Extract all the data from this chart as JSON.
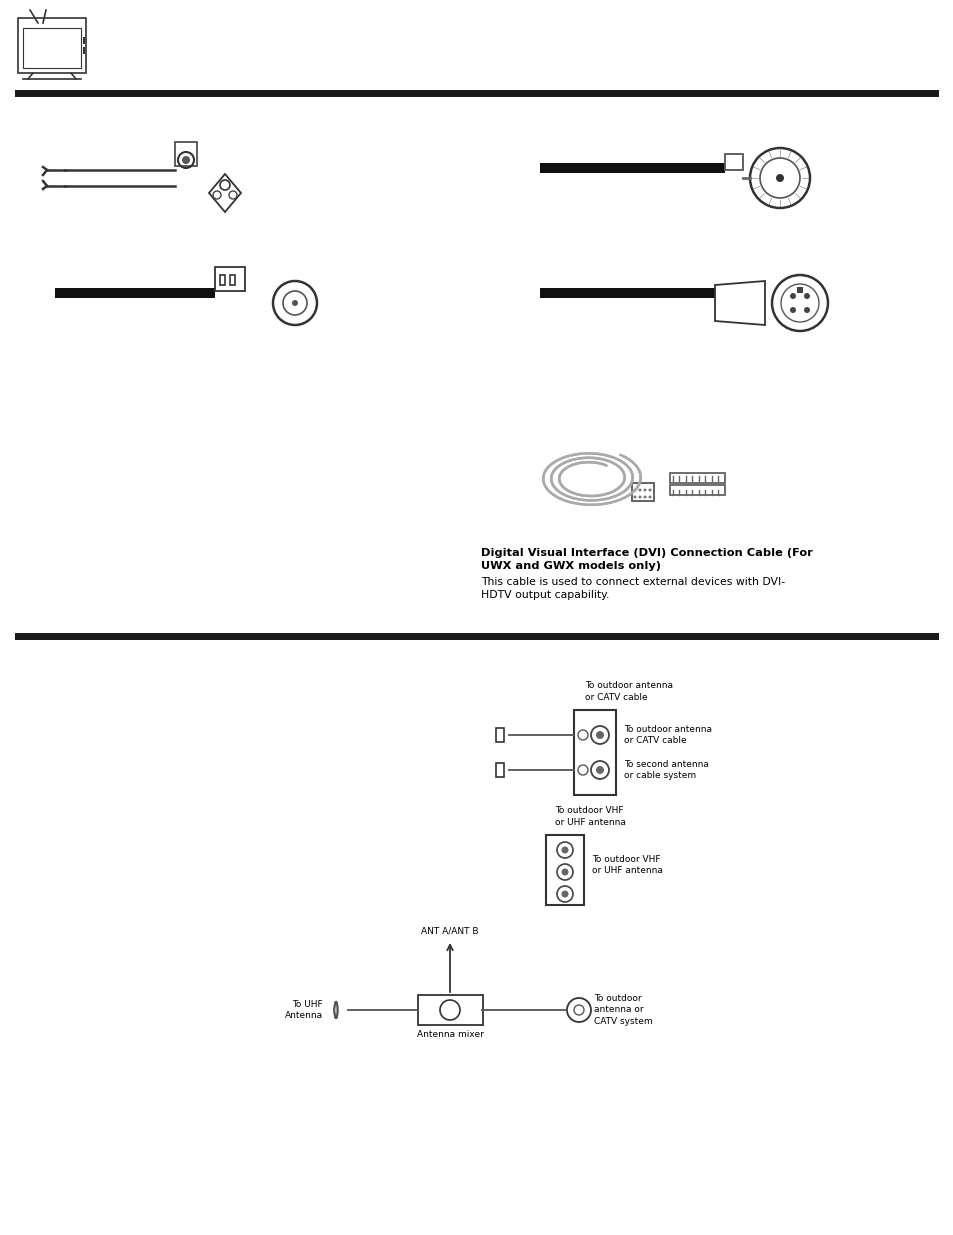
{
  "bg_color": "#ffffff",
  "separator_color": "#1a1a1a",
  "text_color": "#000000",
  "dvi_title_line1": "Digital Visual Interface (DVI) Connection Cable (For",
  "dvi_title_line2": "UWX and GWX models only)",
  "dvi_desc_line1": "This cable is used to connect external devices with DVI-",
  "dvi_desc_line2": "HDTV output capability.",
  "antenna_label1_line1": "To outdoor antenna",
  "antenna_label1_line2": "or CATV cable",
  "antenna_label2_line1": "To second antenna",
  "antenna_label2_line2": "or cable system",
  "vhf_label_line1": "To outdoor VHF",
  "vhf_label_line2": "or UHF antenna",
  "uhf_label_line1": "To UHF",
  "uhf_label_line2": "Antenna",
  "antab_label": "ANT A/ANT B",
  "outdoor_label_line1": "To outdoor",
  "outdoor_label_line2": "antenna or",
  "outdoor_label_line3": "CATV system",
  "mixer_label": "Antenna mixer"
}
